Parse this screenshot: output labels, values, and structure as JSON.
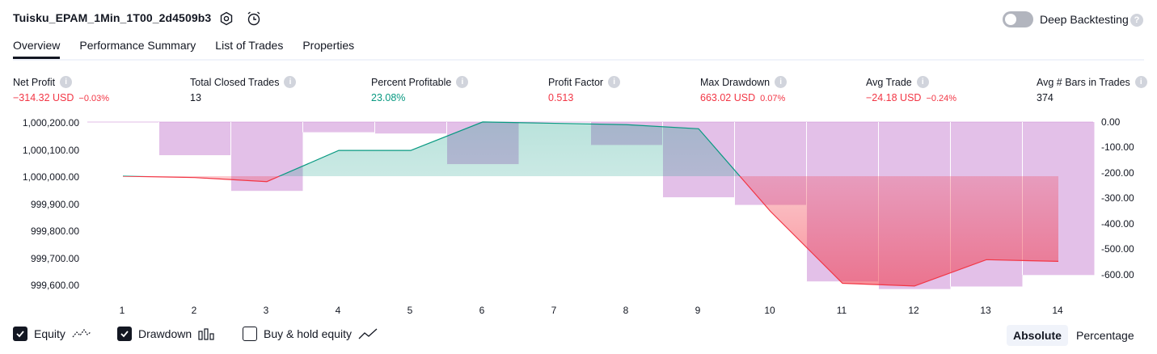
{
  "header": {
    "strategy_name": "Tuisku_EPAM_1Min_1T00_2d4509b3",
    "icons": [
      "settings-icon",
      "alarm-add-icon"
    ],
    "deep_backtesting_label": "Deep Backtesting",
    "deep_backtesting_enabled": false
  },
  "tabs": [
    {
      "label": "Overview",
      "active": true
    },
    {
      "label": "Performance Summary",
      "active": false
    },
    {
      "label": "List of Trades",
      "active": false
    },
    {
      "label": "Properties",
      "active": false
    }
  ],
  "metrics": [
    {
      "label": "Net Profit",
      "value": "−314.32 USD",
      "sub": "−0.03%",
      "color": "#f23645"
    },
    {
      "label": "Total Closed Trades",
      "value": "13",
      "sub": "",
      "color": "#131722"
    },
    {
      "label": "Percent Profitable",
      "value": "23.08%",
      "sub": "",
      "color": "#089981"
    },
    {
      "label": "Profit Factor",
      "value": "0.513",
      "sub": "",
      "color": "#f23645"
    },
    {
      "label": "Max Drawdown",
      "value": "663.02 USD",
      "sub": "0.07%",
      "color": "#f23645"
    },
    {
      "label": "Avg Trade",
      "value": "−24.18 USD",
      "sub": "−0.24%",
      "color": "#f23645"
    },
    {
      "label": "Avg # Bars in Trades",
      "value": "374",
      "sub": "",
      "color": "#131722"
    }
  ],
  "chart_data": {
    "type": "line",
    "x": [
      1,
      2,
      3,
      4,
      5,
      6,
      7,
      8,
      9,
      10,
      11,
      12,
      13,
      14
    ],
    "x_tick_labels": [
      "1",
      "2",
      "3",
      "4",
      "5",
      "6",
      "7",
      "8",
      "9",
      "10",
      "11",
      "12",
      "13",
      "14"
    ],
    "y_left_ticks": [
      "1,000,200.00",
      "1,000,100.00",
      "1,000,000.00",
      "999,900.00",
      "999,800.00",
      "999,700.00",
      "999,600.00"
    ],
    "y_left_range": [
      999560,
      1000220
    ],
    "y_right_ticks": [
      "0.00",
      "-100.00",
      "-200.00",
      "-300.00",
      "-400.00",
      "-500.00",
      "-600.00"
    ],
    "y_right_range": [
      -660,
      0
    ],
    "series": [
      {
        "name": "Equity",
        "values": [
          1000000,
          999995,
          999980,
          1000095,
          1000095,
          1000200,
          1000195,
          1000190,
          1000175,
          999870,
          999605,
          999595,
          999692,
          999686
        ]
      },
      {
        "name": "Drawdown",
        "values": [
          0,
          -130,
          -270,
          -40,
          -45,
          -165,
          0,
          -90,
          -295,
          -325,
          -625,
          -655,
          -645,
          -600
        ]
      }
    ],
    "baseline": 1000000,
    "colors": {
      "equity_up": "#089981",
      "equity_down": "#f23645",
      "drawdown": "#ce93d8"
    }
  },
  "legend": [
    {
      "label": "Equity",
      "checked": true,
      "icon": "equity-line-icon"
    },
    {
      "label": "Drawdown",
      "checked": true,
      "icon": "drawdown-bars-icon"
    },
    {
      "label": "Buy & hold equity",
      "checked": false,
      "icon": "buy-hold-line-icon"
    }
  ],
  "modes": [
    {
      "label": "Absolute",
      "active": true
    },
    {
      "label": "Percentage",
      "active": false
    }
  ]
}
